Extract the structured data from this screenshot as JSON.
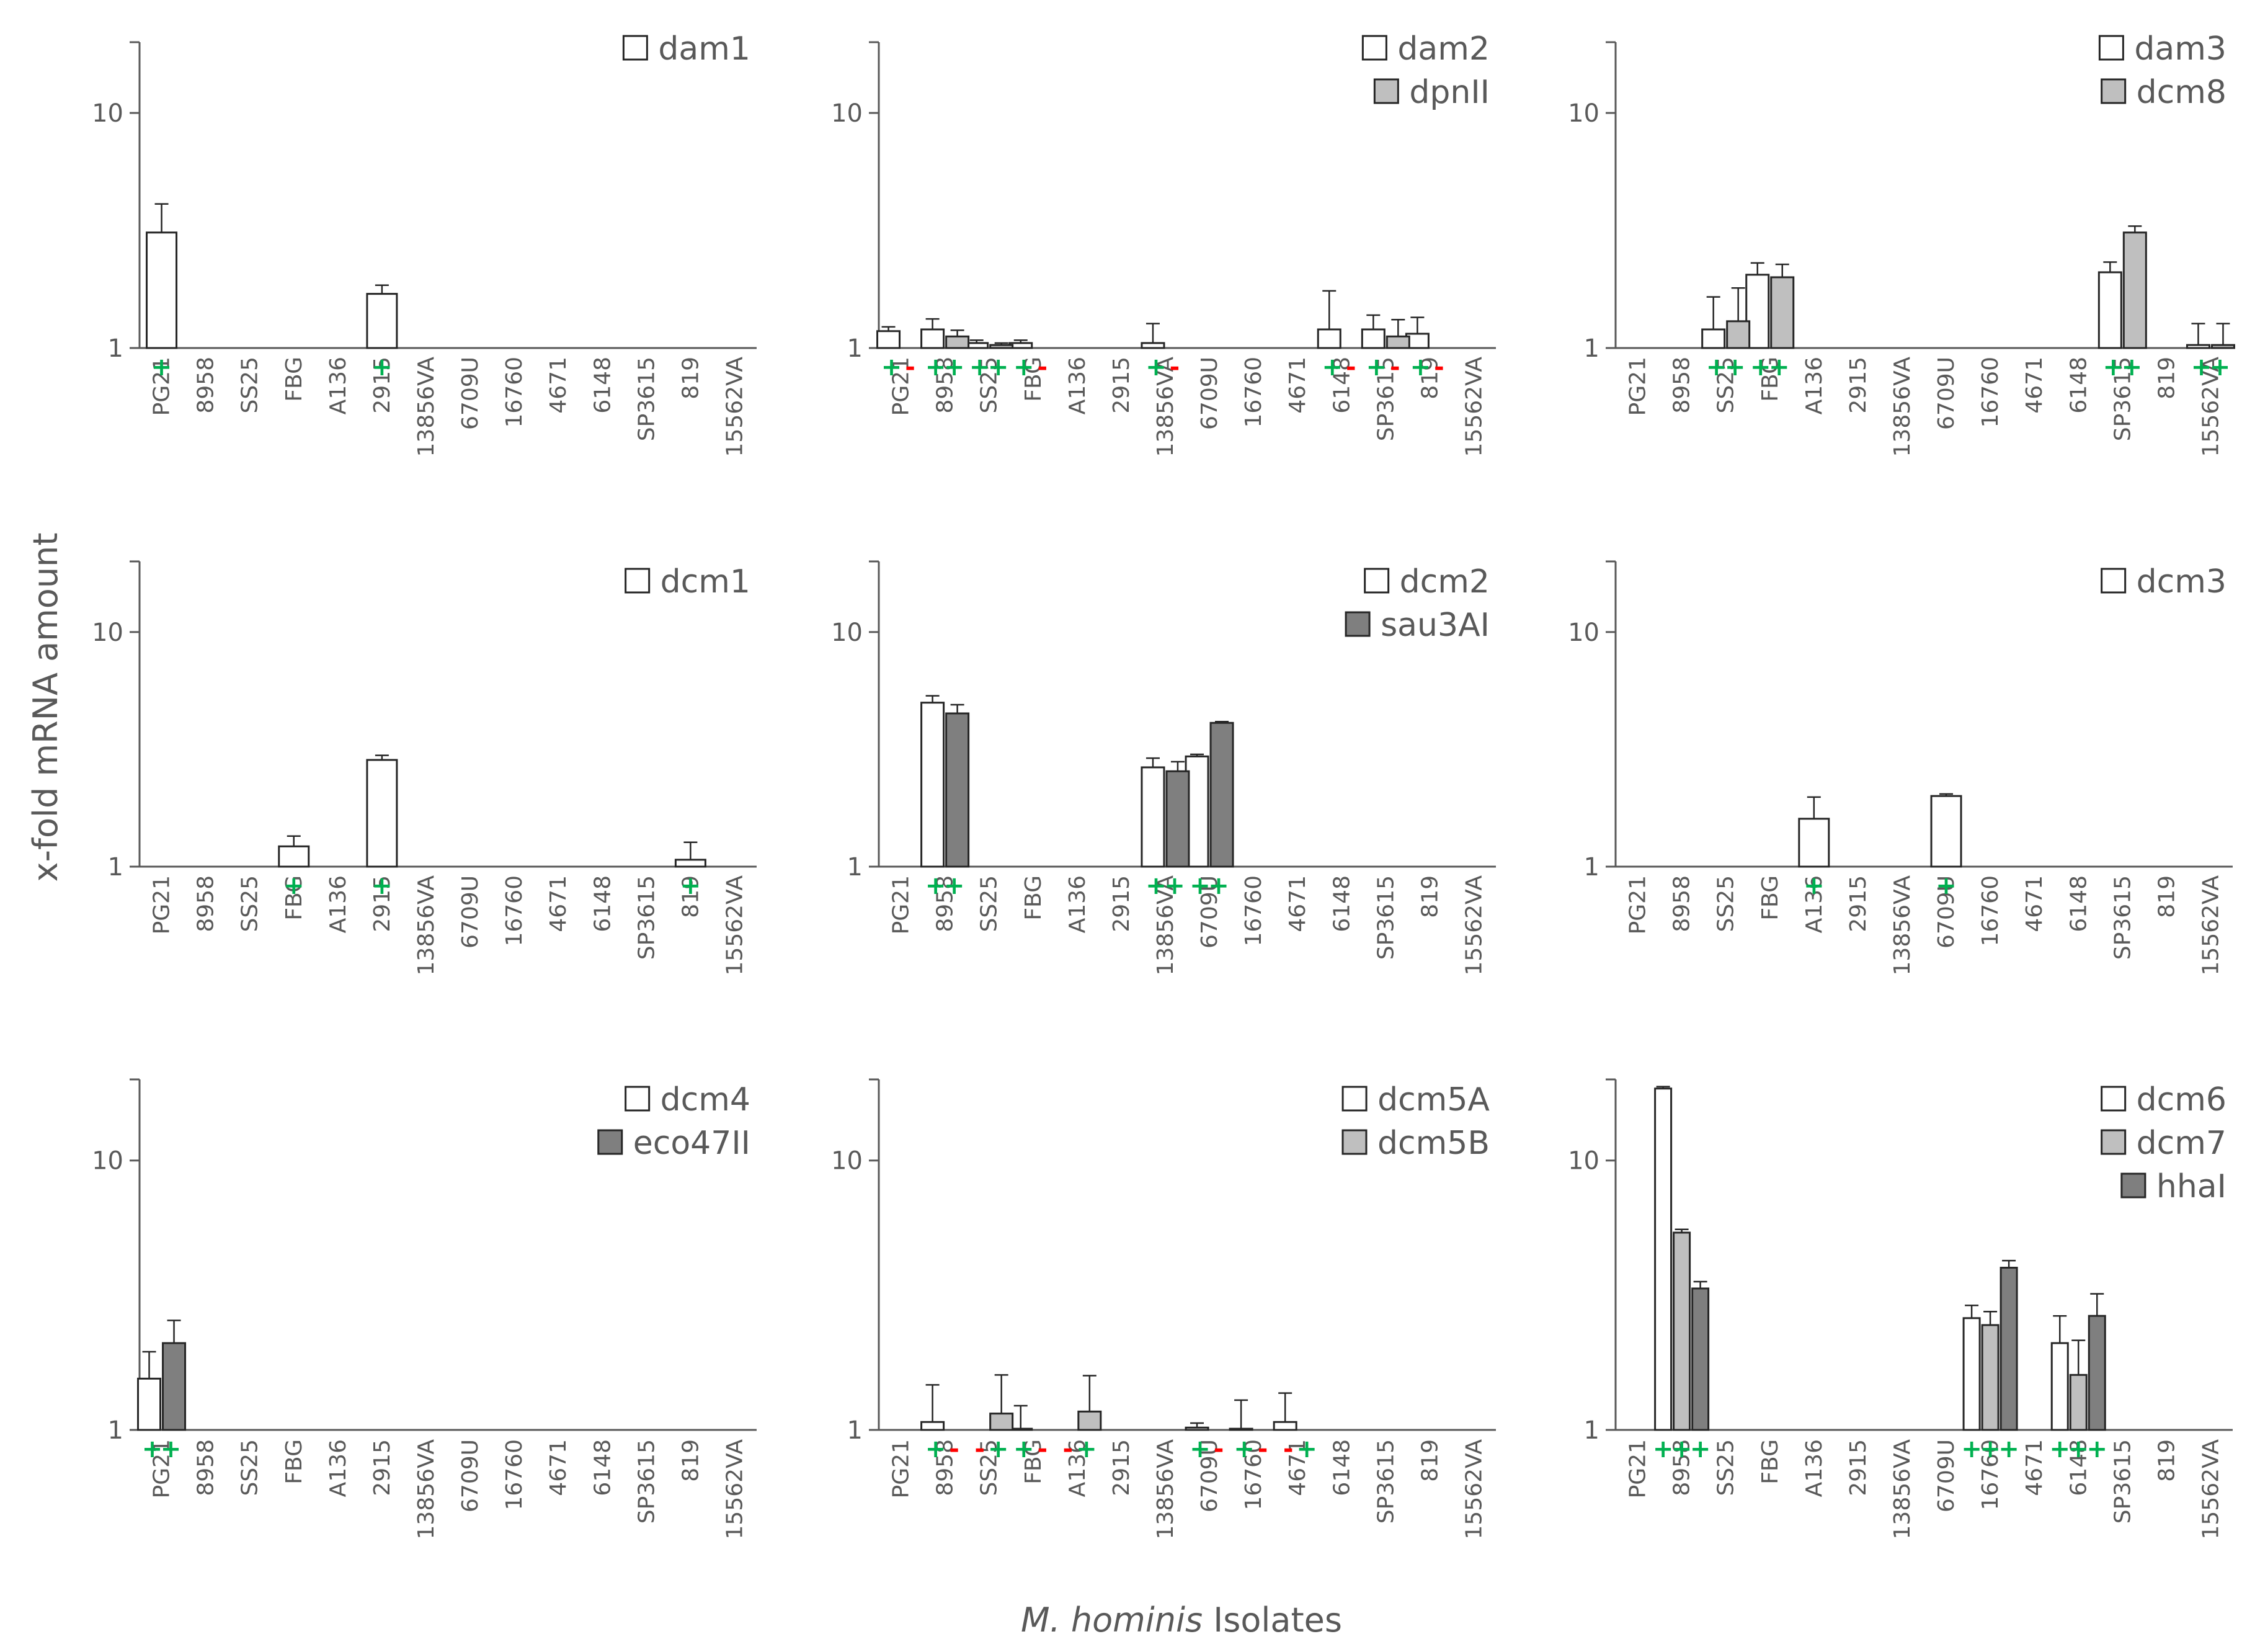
{
  "figure": {
    "ylabel": "x-fold mRNA amount",
    "xlabel_italic": "M. hominis",
    "xlabel_rest": " Isolates",
    "yticks": [
      "1",
      "10"
    ]
  },
  "colors": {
    "white": "#ffffff",
    "lightgray": "#BFBFBF",
    "darkgray": "#7F7F7F",
    "axis": "#595959",
    "plus": "#00B050",
    "minus": "#FF0000"
  },
  "chart_data": [
    {
      "type": "bar",
      "title": "dam1",
      "categories": [
        "PG21",
        "8958",
        "SS25",
        "FBG",
        "A136",
        "2915",
        "13856VA",
        "6709U",
        "16760",
        "4671",
        "6148",
        "SP3615",
        "819",
        "15562VA"
      ],
      "yscale": "log",
      "ylim": [
        1,
        20
      ],
      "series": [
        {
          "name": "dam1",
          "color": "white",
          "values": [
            3.1,
            null,
            null,
            null,
            null,
            1.7,
            null,
            null,
            null,
            null,
            null,
            null,
            null,
            null
          ],
          "errors": [
            1.0,
            null,
            null,
            null,
            null,
            0.15,
            null,
            null,
            null,
            null,
            null,
            null,
            null,
            null
          ]
        }
      ],
      "marks": [
        "+",
        "",
        "",
        "",
        "",
        "+",
        "",
        "",
        "",
        "",
        "",
        "",
        "",
        ""
      ]
    },
    {
      "type": "bar",
      "title": "dam2 / dpnII",
      "categories": [
        "PG21",
        "8958",
        "SS25",
        "FBG",
        "A136",
        "2915",
        "13856VA",
        "6709U",
        "16760",
        "4671",
        "6148",
        "SP3615",
        "819",
        "15562VA"
      ],
      "yscale": "log",
      "ylim": [
        1,
        20
      ],
      "series": [
        {
          "name": "dam2",
          "color": "white",
          "values": [
            1.18,
            1.2,
            1.05,
            1.05,
            null,
            null,
            1.05,
            null,
            null,
            null,
            1.2,
            1.2,
            1.15,
            null
          ],
          "errors": [
            0.05,
            0.13,
            0.03,
            0.03,
            null,
            null,
            0.22,
            null,
            null,
            null,
            0.55,
            0.18,
            0.2,
            null
          ]
        },
        {
          "name": "dpnII",
          "color": "lightgray",
          "values": [
            null,
            1.12,
            1.03,
            null,
            null,
            null,
            null,
            null,
            null,
            null,
            null,
            1.12,
            null,
            null
          ],
          "errors": [
            null,
            0.07,
            0.02,
            null,
            null,
            null,
            null,
            null,
            null,
            null,
            null,
            0.2,
            null,
            null
          ]
        }
      ],
      "marks": [
        "+-",
        "++",
        "++",
        "+-",
        "",
        "",
        "+-",
        "",
        "",
        "",
        "+-",
        "+-",
        "+-",
        ""
      ]
    },
    {
      "type": "bar",
      "title": "dam3 / dcm8",
      "categories": [
        "PG21",
        "8958",
        "SS25",
        "FBG",
        "A136",
        "2915",
        "13856VA",
        "6709U",
        "16760",
        "4671",
        "6148",
        "SP3615",
        "819",
        "15562VA"
      ],
      "yscale": "log",
      "ylim": [
        1,
        20
      ],
      "series": [
        {
          "name": "dam3",
          "color": "white",
          "values": [
            null,
            null,
            1.2,
            2.05,
            null,
            null,
            null,
            null,
            null,
            null,
            null,
            2.1,
            null,
            1.03
          ],
          "errors": [
            null,
            null,
            0.45,
            0.25,
            null,
            null,
            null,
            null,
            null,
            null,
            null,
            0.22,
            null,
            0.24
          ]
        },
        {
          "name": "dcm8",
          "color": "lightgray",
          "values": [
            null,
            null,
            1.3,
            2.0,
            null,
            null,
            null,
            null,
            null,
            null,
            null,
            3.1,
            null,
            1.03
          ],
          "errors": [
            null,
            null,
            0.5,
            0.27,
            null,
            null,
            null,
            null,
            null,
            null,
            null,
            0.2,
            null,
            0.24
          ]
        }
      ],
      "marks": [
        "",
        "",
        "++",
        "++",
        "",
        "",
        "",
        "",
        "",
        "",
        "",
        "++",
        "",
        "++"
      ]
    },
    {
      "type": "bar",
      "title": "dcm1",
      "categories": [
        "PG21",
        "8958",
        "SS25",
        "FBG",
        "A136",
        "2915",
        "13856VA",
        "6709U",
        "16760",
        "4671",
        "6148",
        "SP3615",
        "819",
        "15562VA"
      ],
      "yscale": "log",
      "ylim": [
        1,
        20
      ],
      "series": [
        {
          "name": "dcm1",
          "color": "white",
          "values": [
            null,
            null,
            null,
            1.22,
            null,
            2.85,
            null,
            null,
            null,
            null,
            null,
            null,
            1.07,
            null
          ],
          "errors": [
            null,
            null,
            null,
            0.13,
            null,
            0.13,
            null,
            null,
            null,
            null,
            null,
            null,
            0.2,
            null
          ]
        }
      ],
      "marks": [
        "",
        "",
        "",
        "+",
        "",
        "+",
        "",
        "",
        "",
        "",
        "",
        "",
        "+",
        ""
      ]
    },
    {
      "type": "bar",
      "title": "dcm2 / sau3AI",
      "categories": [
        "PG21",
        "8958",
        "SS25",
        "FBG",
        "A136",
        "2915",
        "13856VA",
        "6709U",
        "16760",
        "4671",
        "6148",
        "SP3615",
        "819",
        "15562VA"
      ],
      "yscale": "log",
      "ylim": [
        1,
        20
      ],
      "series": [
        {
          "name": "dcm2",
          "color": "white",
          "values": [
            null,
            5.0,
            null,
            null,
            null,
            null,
            2.65,
            2.95,
            null,
            null,
            null,
            null,
            null,
            null
          ],
          "errors": [
            null,
            0.35,
            null,
            null,
            null,
            null,
            0.25,
            0.06,
            null,
            null,
            null,
            null,
            null,
            null
          ]
        },
        {
          "name": "sau3AI",
          "color": "darkgray",
          "values": [
            null,
            4.5,
            null,
            null,
            null,
            null,
            2.55,
            4.1,
            null,
            null,
            null,
            null,
            null,
            null
          ],
          "errors": [
            null,
            0.4,
            null,
            null,
            null,
            null,
            0.25,
            0.05,
            null,
            null,
            null,
            null,
            null,
            null
          ]
        }
      ],
      "marks": [
        "",
        "++",
        "",
        "",
        "",
        "",
        "++",
        "++",
        "",
        "",
        "",
        "",
        "",
        ""
      ]
    },
    {
      "type": "bar",
      "title": "dcm3",
      "categories": [
        "PG21",
        "8958",
        "SS25",
        "FBG",
        "A136",
        "2915",
        "13856VA",
        "6709U",
        "16760",
        "4671",
        "6148",
        "SP3615",
        "819",
        "15562VA"
      ],
      "yscale": "log",
      "ylim": [
        1,
        20
      ],
      "series": [
        {
          "name": "dcm3",
          "color": "white",
          "values": [
            null,
            null,
            null,
            null,
            1.6,
            null,
            null,
            2.0,
            null,
            null,
            null,
            null,
            null,
            null
          ],
          "errors": [
            null,
            null,
            null,
            null,
            0.38,
            null,
            null,
            0.04,
            null,
            null,
            null,
            null,
            null,
            null
          ]
        }
      ],
      "marks": [
        "",
        "",
        "",
        "",
        "+",
        "",
        "",
        "+",
        "",
        "",
        "",
        "",
        "",
        ""
      ]
    },
    {
      "type": "bar",
      "title": "dcm4 / eco47II",
      "categories": [
        "PG21",
        "8958",
        "SS25",
        "FBG",
        "A136",
        "2915",
        "13856VA",
        "6709U",
        "16760",
        "4671",
        "6148",
        "SP3615",
        "819",
        "15562VA"
      ],
      "yscale": "log",
      "ylim": [
        1,
        20
      ],
      "series": [
        {
          "name": "dcm4",
          "color": "white",
          "values": [
            1.55,
            null,
            null,
            null,
            null,
            null,
            null,
            null,
            null,
            null,
            null,
            null,
            null,
            null
          ],
          "errors": [
            0.4,
            null,
            null,
            null,
            null,
            null,
            null,
            null,
            null,
            null,
            null,
            null,
            null,
            null
          ]
        },
        {
          "name": "eco47II",
          "color": "darkgray",
          "values": [
            2.1,
            null,
            null,
            null,
            null,
            null,
            null,
            null,
            null,
            null,
            null,
            null,
            null,
            null
          ],
          "errors": [
            0.45,
            null,
            null,
            null,
            null,
            null,
            null,
            null,
            null,
            null,
            null,
            null,
            null,
            null
          ]
        }
      ],
      "marks": [
        "++",
        "",
        "",
        "",
        "",
        "",
        "",
        "",
        "",
        "",
        "",
        "",
        "",
        ""
      ]
    },
    {
      "type": "bar",
      "title": "dcm5A / dcm5B",
      "categories": [
        "PG21",
        "8958",
        "SS25",
        "FBG",
        "A136",
        "2915",
        "13856VA",
        "6709U",
        "16760",
        "4671",
        "6148",
        "SP3615",
        "819",
        "15562VA"
      ],
      "yscale": "log",
      "ylim": [
        1,
        20
      ],
      "series": [
        {
          "name": "dcm5A",
          "color": "white",
          "values": [
            null,
            1.07,
            null,
            1.01,
            null,
            null,
            null,
            1.02,
            1.01,
            1.07,
            null,
            null,
            null,
            null
          ],
          "errors": [
            null,
            0.4,
            null,
            0.22,
            null,
            null,
            null,
            0.04,
            0.28,
            0.3,
            null,
            null,
            null,
            null
          ]
        },
        {
          "name": "dcm5B",
          "color": "lightgray",
          "values": [
            null,
            null,
            1.15,
            null,
            1.17,
            null,
            null,
            null,
            null,
            null,
            null,
            null,
            null,
            null
          ],
          "errors": [
            null,
            null,
            0.45,
            null,
            0.42,
            null,
            null,
            null,
            null,
            null,
            null,
            null,
            null,
            null
          ]
        }
      ],
      "marks": [
        "",
        "+-",
        "-+",
        "+-",
        "-+",
        "",
        "",
        "+-",
        "+-",
        "-+",
        "",
        "",
        "",
        ""
      ]
    },
    {
      "type": "bar",
      "title": "dcm6 / dcm7 / hhaI",
      "categories": [
        "PG21",
        "8958",
        "SS25",
        "FBG",
        "A136",
        "2915",
        "13856VA",
        "6709U",
        "16760",
        "4671",
        "6148",
        "SP3615",
        "819",
        "15562VA"
      ],
      "yscale": "log",
      "ylim": [
        1,
        20
      ],
      "series": [
        {
          "name": "dcm6",
          "color": "white",
          "values": [
            null,
            18.5,
            null,
            null,
            null,
            null,
            null,
            null,
            2.6,
            null,
            2.1,
            null,
            null,
            null
          ],
          "errors": [
            null,
            0.3,
            null,
            null,
            null,
            null,
            null,
            null,
            0.3,
            null,
            0.55,
            null,
            null,
            null
          ]
        },
        {
          "name": "dcm7",
          "color": "lightgray",
          "values": [
            null,
            5.4,
            null,
            null,
            null,
            null,
            null,
            null,
            2.45,
            null,
            1.6,
            null,
            null,
            null
          ],
          "errors": [
            null,
            0.15,
            null,
            null,
            null,
            null,
            null,
            null,
            0.3,
            null,
            0.55,
            null,
            null,
            null
          ]
        },
        {
          "name": "hhaI",
          "color": "darkgray",
          "values": [
            null,
            3.35,
            null,
            null,
            null,
            null,
            null,
            null,
            4.0,
            null,
            2.65,
            null,
            null,
            null
          ],
          "errors": [
            null,
            0.2,
            null,
            null,
            null,
            null,
            null,
            null,
            0.25,
            null,
            0.55,
            null,
            null,
            null
          ]
        }
      ],
      "marks": [
        "",
        "+++",
        "",
        "",
        "",
        "",
        "",
        "",
        "+++",
        "",
        "+++",
        "",
        "",
        ""
      ]
    }
  ]
}
